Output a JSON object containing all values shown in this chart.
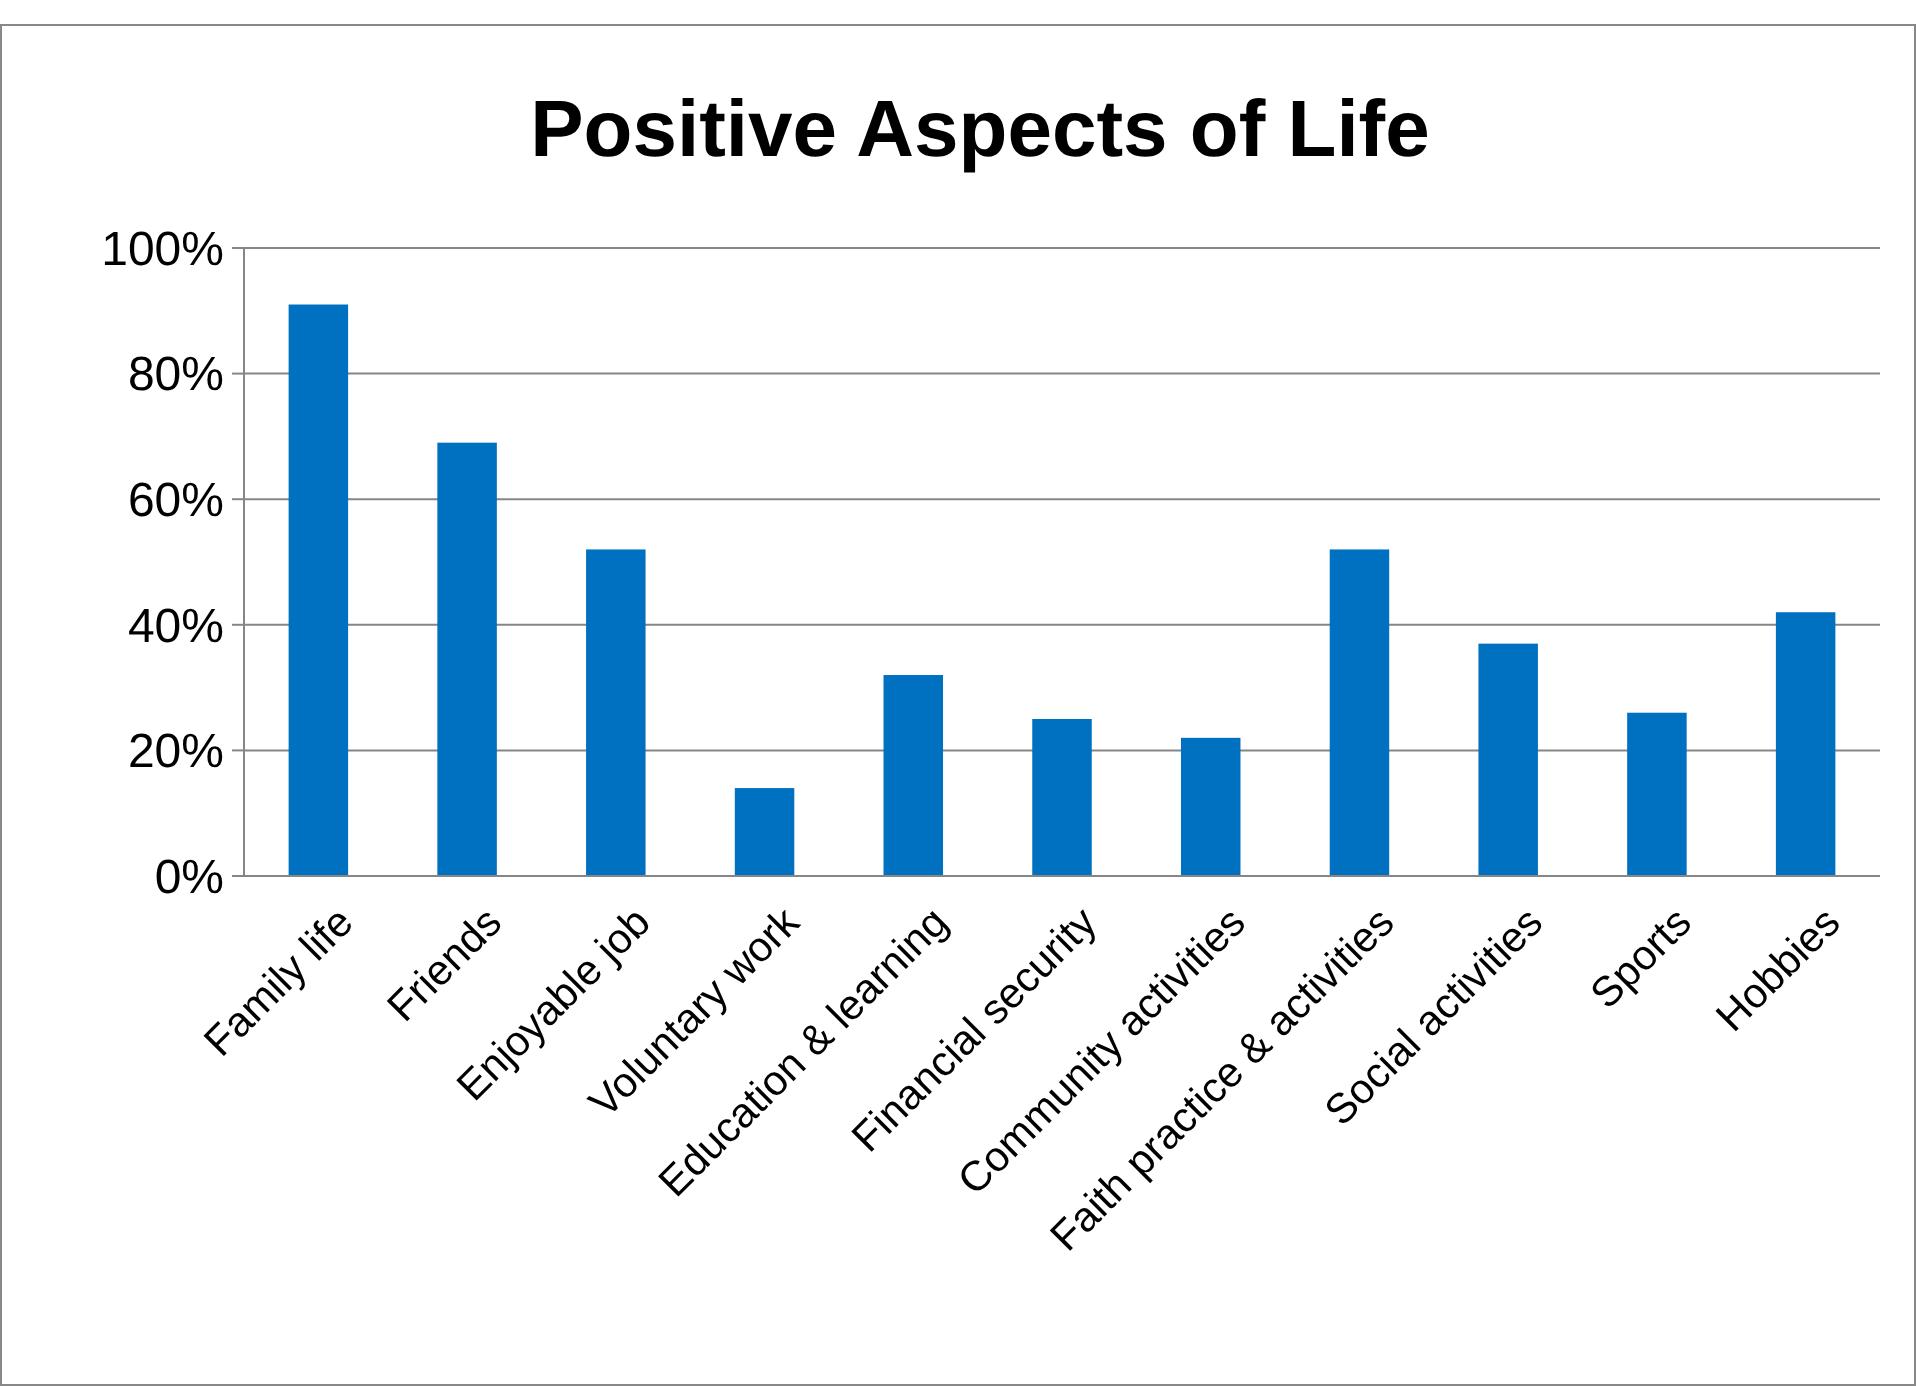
{
  "chart_data": {
    "type": "bar",
    "title": "Positive Aspects of Life",
    "categories": [
      "Family life",
      "Friends",
      "Enjoyable job",
      "Voluntary work",
      "Education & learning",
      "Financial security",
      "Community activities",
      "Faith practice & activities",
      "Social activities",
      "Sports",
      "Hobbies"
    ],
    "values": [
      91,
      69,
      52,
      14,
      32,
      25,
      22,
      52,
      37,
      26,
      42
    ],
    "color": "#0070c0",
    "ylim": [
      0,
      100
    ],
    "yticks": [
      {
        "value": 0,
        "label": "0%"
      },
      {
        "value": 20,
        "label": "20%"
      },
      {
        "value": 40,
        "label": "40%"
      },
      {
        "value": 60,
        "label": "60%"
      },
      {
        "value": 80,
        "label": "80%"
      },
      {
        "value": 100,
        "label": "100%"
      }
    ],
    "grid": "y"
  }
}
